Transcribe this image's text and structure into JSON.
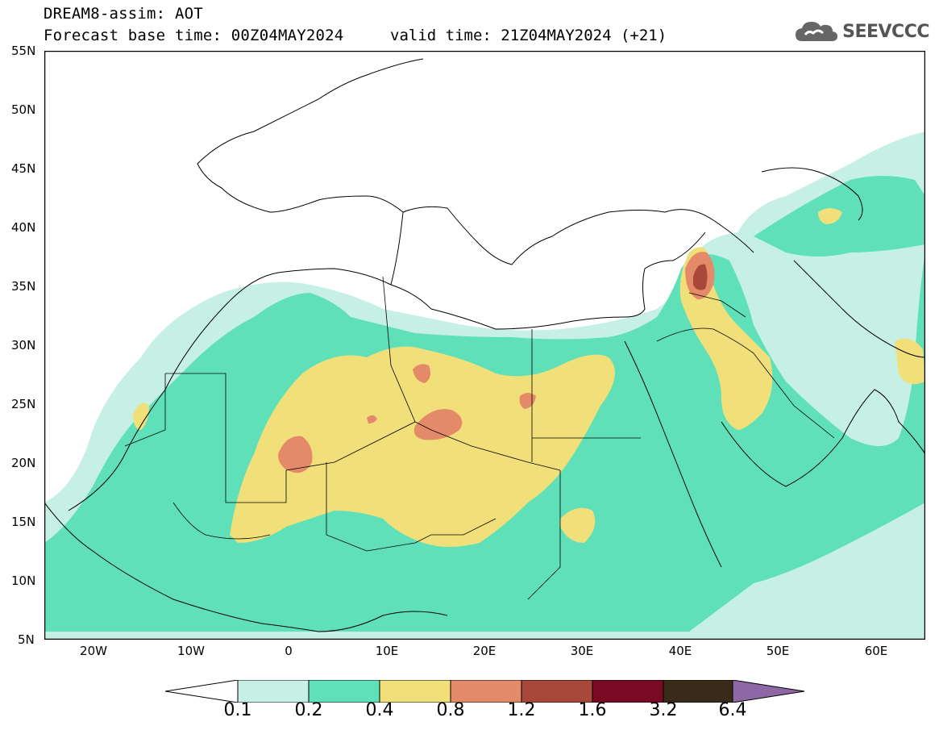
{
  "header": {
    "line1": "DREAM8-assim: AOT",
    "line2": "Forecast base time: 00Z04MAY2024",
    "valid": "valid time: 21Z04MAY2024 (+21)"
  },
  "logo": {
    "text": "SEEVCCC",
    "icon": "cloud-icon"
  },
  "map": {
    "lat_min": 5,
    "lat_max": 55,
    "lon_min": -25,
    "lon_max": 65,
    "lat_ticks": [
      "55N",
      "50N",
      "45N",
      "40N",
      "35N",
      "30N",
      "25N",
      "20N",
      "15N",
      "10N",
      "5N"
    ],
    "lon_ticks": [
      "20W",
      "10W",
      "0",
      "10E",
      "20E",
      "30E",
      "40E",
      "50E",
      "60E"
    ],
    "field": "Aerosol optical thickness (dust)"
  },
  "colorbar": {
    "levels": [
      "0.1",
      "0.2",
      "0.4",
      "0.8",
      "1.2",
      "1.6",
      "3.2",
      "6.4"
    ],
    "colors": [
      "#c6f0e6",
      "#5fe0b8",
      "#f1e07a",
      "#e48a68",
      "#a8483a",
      "#7a0a24",
      "#3a2a1a",
      "#8e68a6"
    ],
    "under_color": "#ffffff"
  }
}
